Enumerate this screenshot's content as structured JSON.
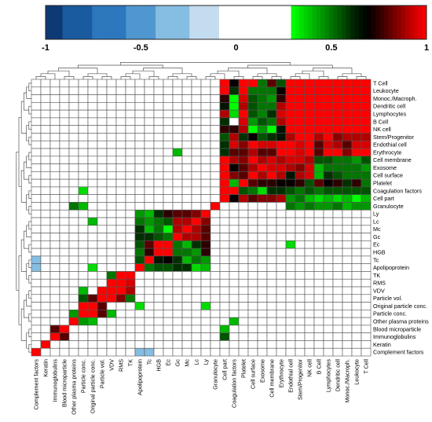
{
  "chart_data": {
    "type": "heatmap",
    "colorbar": {
      "ticks": [
        -1,
        -0.5,
        0,
        0.5,
        1
      ],
      "tick_labels": [
        "-1",
        "-0.5",
        "0",
        "0.5",
        "1"
      ],
      "colors_negative": [
        "#0d3a75",
        "#1a5a9e",
        "#2c77bd",
        "#4f97d0",
        "#86bde2",
        "#c4dcef",
        "#e6f0f8"
      ],
      "colors_positive": [
        "#00ff00",
        "#00c800",
        "#009400",
        "#006000",
        "#002800",
        "#000000",
        "#3a0000",
        "#800000",
        "#c40000",
        "#ff0000"
      ]
    },
    "row_labels": [
      "T Cell",
      "Leukocyte",
      "Monoc./Macroph.",
      "Dendritic cell",
      "Lymphocytes",
      "B Cell",
      "NK cell",
      "Stem/Progenitor",
      "Endothial cell",
      "Erythrocyte",
      "Cell membrane",
      "Exosome",
      "Cell surface",
      "Platelet",
      "Coagulation factors",
      "Cell part",
      "Granulocyte",
      "Ly",
      "Lc",
      "Mc",
      "Gc",
      "Ec",
      "HGB",
      "Tc",
      "Apolipoprotein",
      "TK",
      "RMS",
      "VDV",
      "Particle vol.",
      "Original particle conc.",
      "Particle conc.",
      "Other plasma proteins",
      "Blood microparticle",
      "Immunoglobulins",
      "Keratin",
      "Complement factors"
    ],
    "column_labels": [
      "Complement factors",
      "Keratin",
      "Immunoglobulins",
      "Blood microparticle",
      "Other plasma proteins",
      "Particle conc.",
      "Original particle conc.",
      "Particle vol.",
      "VDV",
      "RMS",
      "TK",
      "Apolipoprotein",
      "Tc",
      "HGB",
      "Ec",
      "Gc",
      "Mc",
      "Lc",
      "Ly",
      "Granulocyte",
      "Cell part",
      "Coagulation factors",
      "Platelet",
      "Cell surface",
      "Exosome",
      "Cell membrane",
      "Erythrocyte",
      "Endothial cell",
      "Stem/Progenitor",
      "NK cell",
      "B Cell",
      "Lymphocytes",
      "Dendritic cell",
      "Monoc./Macroph.",
      "Leukocyte",
      "T Cell"
    ],
    "values": [
      [
        0,
        0,
        0,
        0,
        0,
        0,
        0,
        0,
        0,
        0,
        0,
        0,
        0,
        0,
        0,
        0,
        0,
        0,
        0,
        0,
        1,
        0.7,
        1,
        1,
        0.5,
        0.8,
        0.55,
        1,
        1,
        1,
        1,
        1,
        1,
        1,
        1,
        1
      ],
      [
        0,
        0,
        0,
        0,
        0,
        0,
        0,
        0,
        0,
        0,
        0,
        0,
        0,
        0,
        0,
        0,
        0,
        0,
        0,
        0,
        1,
        0.6,
        1,
        0.5,
        0.5,
        0.5,
        0.7,
        1,
        1,
        1,
        1,
        1,
        1,
        1,
        1,
        1
      ],
      [
        0,
        0,
        0,
        0,
        0,
        0,
        0,
        0,
        0,
        0,
        0,
        0,
        0,
        0,
        0,
        0,
        0,
        0,
        0,
        0,
        0.75,
        0.2,
        0.95,
        0.55,
        0.5,
        0.45,
        0.75,
        1,
        1,
        1,
        1,
        1,
        1,
        1,
        1,
        1
      ],
      [
        0,
        0,
        0,
        0,
        0,
        0,
        0,
        0,
        0,
        0,
        0,
        0,
        0,
        0,
        0,
        0,
        0,
        0,
        0,
        0,
        0.65,
        0.2,
        0.9,
        0.55,
        0.5,
        0.5,
        0.9,
        1,
        1,
        1,
        1,
        1,
        1,
        1,
        1,
        1
      ],
      [
        0,
        0,
        0,
        0,
        0,
        0,
        0,
        0,
        0,
        0,
        0,
        0,
        0,
        0,
        0,
        0,
        0,
        0,
        0,
        0,
        0.9,
        0.35,
        1,
        0.55,
        0.48,
        0.6,
        0.95,
        1,
        1,
        1,
        1,
        1,
        1,
        1,
        1,
        1
      ],
      [
        0,
        0,
        0,
        0,
        0,
        0,
        0,
        0,
        0,
        0,
        0,
        0,
        0,
        0,
        0,
        0,
        0,
        0,
        0,
        0,
        0.6,
        0,
        0.95,
        0.45,
        0.55,
        0.5,
        0.9,
        1,
        1,
        1,
        1,
        1,
        1,
        1,
        1,
        1
      ],
      [
        0,
        0,
        0,
        0,
        0,
        0,
        0,
        0,
        0,
        0,
        0,
        0,
        0,
        0,
        0,
        0,
        0,
        0,
        0,
        0,
        0.75,
        0.75,
        0.9,
        0.3,
        0.45,
        0.2,
        0.65,
        1,
        1,
        1,
        1,
        1,
        1,
        1,
        1,
        1
      ],
      [
        0,
        0,
        0,
        0,
        0,
        0,
        0,
        0,
        0,
        0,
        0,
        0,
        0,
        0,
        0,
        0,
        0,
        0,
        0,
        0,
        0.55,
        0.9,
        0.6,
        0.7,
        0.55,
        0.6,
        0.65,
        0.9,
        1,
        1,
        0.9,
        1,
        0.85,
        0.9,
        0.9,
        0.9
      ],
      [
        0,
        0,
        0,
        0,
        0,
        0,
        0,
        0,
        0,
        0,
        0,
        0,
        0,
        0,
        0,
        0,
        0,
        0,
        0,
        0,
        0.6,
        0.95,
        0.85,
        1,
        0.95,
        0.95,
        1,
        1,
        0.95,
        1,
        0.8,
        0.95,
        0.9,
        0.8,
        0.95,
        0.95
      ],
      [
        0,
        0,
        0,
        0,
        0,
        0,
        0,
        0,
        0,
        0,
        0,
        0,
        0,
        0,
        0,
        0.4,
        0,
        0,
        0,
        0,
        0.6,
        0.8,
        0.8,
        0.9,
        0.8,
        0.8,
        1,
        1,
        0.95,
        1,
        0.8,
        1,
        1,
        0.85,
        1,
        1
      ],
      [
        0,
        0,
        0,
        0,
        0,
        0,
        0,
        0,
        0,
        0,
        0,
        0,
        0,
        0,
        0,
        0,
        0,
        0,
        0,
        0,
        1,
        0.9,
        0.85,
        1,
        0.9,
        0.95,
        0.9,
        0.95,
        0.95,
        0.9,
        0.55,
        0.55,
        0.5,
        0.5,
        0.45,
        0.55
      ],
      [
        0,
        0,
        0,
        0,
        0,
        0,
        0,
        0,
        0,
        0,
        0,
        0,
        0,
        0,
        0,
        0,
        0,
        0,
        0,
        0,
        1,
        0.7,
        0.8,
        0.9,
        1,
        0.95,
        0.95,
        0.9,
        0.85,
        0.95,
        0.4,
        0.5,
        0.5,
        0.5,
        0.5,
        0.45
      ],
      [
        0,
        0,
        0,
        0,
        0,
        0,
        0,
        0,
        0,
        0,
        0,
        0,
        0,
        0,
        0,
        0,
        0,
        0,
        0,
        0,
        1,
        0.85,
        0.8,
        1,
        0.9,
        1,
        0.9,
        0.65,
        0.9,
        0.95,
        0.4,
        0.6,
        0.55,
        0.5,
        0.5,
        0.5
      ],
      [
        0,
        0,
        0,
        0,
        0,
        0,
        0,
        0,
        0,
        0,
        0,
        0,
        0,
        0,
        0,
        0,
        0,
        0,
        0,
        0,
        1,
        0.4,
        1,
        0.8,
        0.75,
        0.75,
        0.7,
        0.7,
        0.75,
        0.55,
        0.8,
        0.7,
        0.75,
        0.6,
        0.75,
        0.5
      ],
      [
        0,
        0,
        0,
        0,
        0,
        0.35,
        0,
        0,
        0,
        0,
        0,
        0,
        0,
        0,
        0,
        0,
        0,
        0,
        0,
        0,
        1,
        1,
        0.55,
        0.5,
        0.35,
        0.6,
        0.6,
        0.55,
        0.5,
        0.55,
        0.5,
        0.55,
        0.55,
        0.55,
        0.55,
        0.55
      ],
      [
        0,
        0,
        0,
        0,
        0,
        0,
        0,
        0,
        0,
        0,
        0,
        0,
        0,
        0,
        0,
        0,
        0,
        0,
        0,
        0,
        1,
        0.7,
        0.9,
        0.8,
        0.85,
        0.85,
        0.9,
        0.45,
        0.5,
        0.4,
        0.35,
        0.4,
        0.35,
        0.4,
        0.3,
        0.4
      ],
      [
        0,
        0,
        0,
        0,
        0.5,
        0.4,
        0,
        0,
        0,
        0,
        0,
        0,
        0,
        0,
        0,
        0,
        0,
        0,
        0,
        1,
        0,
        0,
        0,
        0,
        0,
        0,
        0,
        0.5,
        0.45,
        0.5,
        0.45,
        0.45,
        0.5,
        0.4,
        0.45,
        0.45
      ],
      [
        0,
        0,
        0,
        0,
        0,
        0,
        0,
        0,
        0,
        0,
        0,
        0.45,
        0.4,
        0.6,
        0.75,
        0.8,
        0.8,
        0.85,
        1,
        0,
        0,
        0,
        0,
        0,
        0,
        0,
        0,
        0,
        0,
        0,
        0,
        0,
        0,
        0,
        0,
        0
      ],
      [
        0,
        0,
        0,
        0,
        0,
        0,
        0.4,
        0,
        0,
        0,
        0,
        0.5,
        0.45,
        0.5,
        0.55,
        0.9,
        0.9,
        1,
        0.85,
        0,
        0,
        0,
        0,
        0,
        0,
        0,
        0,
        0,
        0,
        0,
        0,
        0,
        0,
        0,
        0,
        0
      ],
      [
        0,
        0,
        0,
        0,
        0,
        0,
        0,
        0,
        0,
        0,
        0,
        0.6,
        0.4,
        0.5,
        0.3,
        0.9,
        1,
        0.9,
        0.8,
        0,
        0,
        0,
        0,
        0,
        0,
        0,
        0,
        0,
        0,
        0,
        0,
        0,
        0,
        0,
        0,
        0
      ],
      [
        0,
        0,
        0,
        0,
        0,
        0,
        0,
        0,
        0,
        0,
        0,
        0.6,
        0.6,
        0.55,
        0.5,
        1,
        0.9,
        0.9,
        0.8,
        0,
        0,
        0,
        0,
        0,
        0,
        0,
        0,
        0,
        0,
        0,
        0,
        0,
        0,
        0,
        0,
        0
      ],
      [
        0,
        0,
        0,
        0,
        0,
        0,
        0,
        0,
        0,
        0,
        0,
        0.55,
        0.8,
        1,
        1,
        0.5,
        0.4,
        0.6,
        0.75,
        0,
        0,
        0,
        0,
        0,
        0,
        0,
        0,
        0.35,
        0,
        0,
        0,
        0,
        0,
        0,
        0,
        0
      ],
      [
        0,
        0,
        0,
        0,
        0,
        0,
        0,
        0,
        0,
        0,
        0,
        0.5,
        0.75,
        1,
        1,
        0.5,
        0.5,
        0.45,
        0.75,
        0,
        0,
        0,
        0,
        0,
        0,
        0,
        0,
        0,
        0,
        0,
        0,
        0,
        0,
        0,
        0,
        0
      ],
      [
        -0.4,
        0,
        0,
        0,
        0,
        0,
        0,
        0,
        0,
        0,
        0,
        0.55,
        1,
        0.65,
        0.7,
        0.6,
        0.4,
        0.5,
        0.45,
        0,
        0,
        0,
        0,
        0,
        0,
        0,
        0,
        0,
        0,
        0,
        0,
        0,
        0,
        0,
        0,
        0
      ],
      [
        -0.3,
        0,
        0,
        0,
        0,
        0,
        0.35,
        0,
        0,
        0,
        0,
        1,
        0.5,
        0.55,
        0.55,
        0.6,
        0.6,
        0.35,
        0.4,
        0,
        0,
        0,
        0,
        0,
        0,
        0,
        0,
        0,
        0,
        0,
        0,
        0,
        0,
        0,
        0,
        0
      ],
      [
        0,
        0,
        0,
        0,
        0,
        0,
        0,
        0,
        0.5,
        1,
        1,
        0,
        0,
        0,
        0,
        0,
        0,
        0,
        0,
        0,
        0,
        0,
        0,
        0,
        0,
        0,
        0,
        0,
        0,
        0,
        0,
        0,
        0,
        0,
        0,
        0
      ],
      [
        0,
        0,
        0,
        0,
        0,
        0,
        0,
        0,
        1,
        1,
        0.95,
        0,
        0,
        0,
        0,
        0,
        0,
        0,
        0,
        0,
        0,
        0,
        0,
        0,
        0,
        0,
        0,
        0,
        0,
        0,
        0,
        0,
        0,
        0,
        0,
        0
      ],
      [
        0,
        0,
        0,
        0,
        0,
        0.4,
        0,
        1,
        1,
        1,
        0.9,
        0,
        0,
        0,
        0,
        0,
        0,
        0,
        0,
        0,
        0,
        0,
        0,
        0,
        0,
        0,
        0,
        0,
        0,
        0,
        0,
        0,
        0,
        0,
        0,
        0
      ],
      [
        0,
        0,
        0,
        0,
        0,
        0.55,
        0.8,
        1,
        1,
        0.85,
        0.5,
        0,
        0,
        0,
        0,
        0,
        0,
        0,
        0,
        0,
        0,
        0,
        0,
        0,
        0,
        0,
        0,
        0,
        0,
        0,
        0,
        0,
        0,
        0,
        0,
        0
      ],
      [
        0,
        0,
        0,
        0,
        0,
        1,
        1,
        0.8,
        0,
        0,
        0,
        0.35,
        0,
        0,
        0,
        0,
        0,
        0,
        0.35,
        0,
        0,
        0,
        0,
        0,
        0,
        0,
        0,
        0,
        0,
        0,
        0,
        0,
        0,
        0,
        0,
        0
      ],
      [
        0,
        0,
        0,
        0,
        0.45,
        1,
        1,
        0.8,
        0.4,
        0,
        0,
        0,
        0,
        0,
        0,
        0,
        0,
        0,
        0,
        0,
        0,
        0,
        0,
        0,
        0,
        0,
        0,
        0,
        0,
        0,
        0,
        0,
        0,
        0,
        0,
        0
      ],
      [
        0,
        0,
        0,
        0,
        1,
        0.45,
        0.4,
        0,
        0,
        0,
        0,
        0,
        0,
        0,
        0,
        0,
        0,
        0,
        0,
        0,
        0,
        0.4,
        0,
        0,
        0,
        0,
        0,
        0,
        0,
        0,
        0,
        0,
        0,
        0,
        0,
        0
      ],
      [
        0,
        0,
        0.8,
        1,
        0,
        0,
        0,
        0,
        0,
        0,
        0,
        0,
        0,
        0,
        0,
        0,
        0,
        0,
        0,
        0,
        0.4,
        0,
        0,
        0,
        0,
        0,
        0,
        0,
        0,
        0,
        0,
        0,
        0,
        0,
        0,
        0
      ],
      [
        0,
        0,
        1,
        0.8,
        0,
        0,
        0,
        0,
        0,
        0,
        0,
        0,
        0,
        0,
        0,
        0,
        0,
        0,
        0,
        0,
        0.55,
        0,
        0,
        0,
        0,
        0,
        0,
        0,
        0,
        0,
        0,
        0,
        0,
        0,
        0,
        0
      ],
      [
        0,
        1,
        0,
        0,
        0,
        0,
        0,
        0,
        0,
        0,
        0,
        0,
        0,
        0,
        0,
        0,
        0,
        0,
        0,
        0,
        0,
        0,
        0,
        0,
        0,
        0,
        0,
        0,
        0,
        0,
        0,
        0,
        0,
        0,
        0,
        0
      ],
      [
        1,
        0,
        0,
        0,
        0,
        0,
        0,
        0,
        0,
        0,
        0,
        -0.3,
        -0.3,
        0,
        0,
        0,
        0,
        0,
        0,
        0,
        0,
        0,
        0,
        0,
        0,
        0,
        0,
        0,
        0,
        0,
        0,
        0,
        0,
        0,
        0,
        0
      ]
    ],
    "xlabel": "",
    "ylabel": "",
    "legend": "top colorbar"
  }
}
